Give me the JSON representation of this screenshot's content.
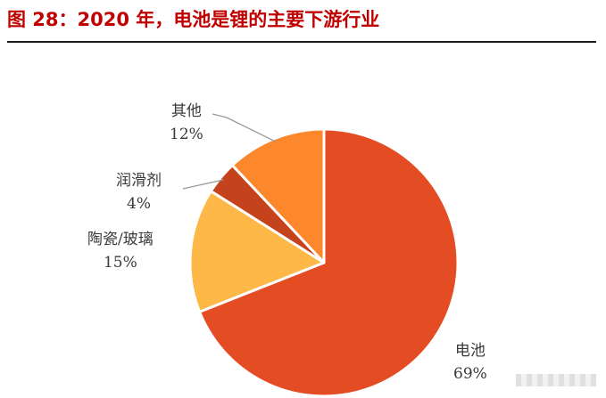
{
  "title": "图 28：2020 年，电池是锂的主要下游行业",
  "chart_data": {
    "type": "pie",
    "slices": [
      {
        "label": "电池",
        "value": 69,
        "percent_label": "69%",
        "color": "#e44c23"
      },
      {
        "label": "陶瓷/玻璃",
        "value": 15,
        "percent_label": "15%",
        "color": "#fdb848"
      },
      {
        "label": "润滑剂",
        "value": 4,
        "percent_label": "4%",
        "color": "#c5431c"
      },
      {
        "label": "其他",
        "value": 12,
        "percent_label": "12%",
        "color": "#fd872b"
      }
    ],
    "start": "12 o'clock",
    "direction": "clockwise"
  }
}
